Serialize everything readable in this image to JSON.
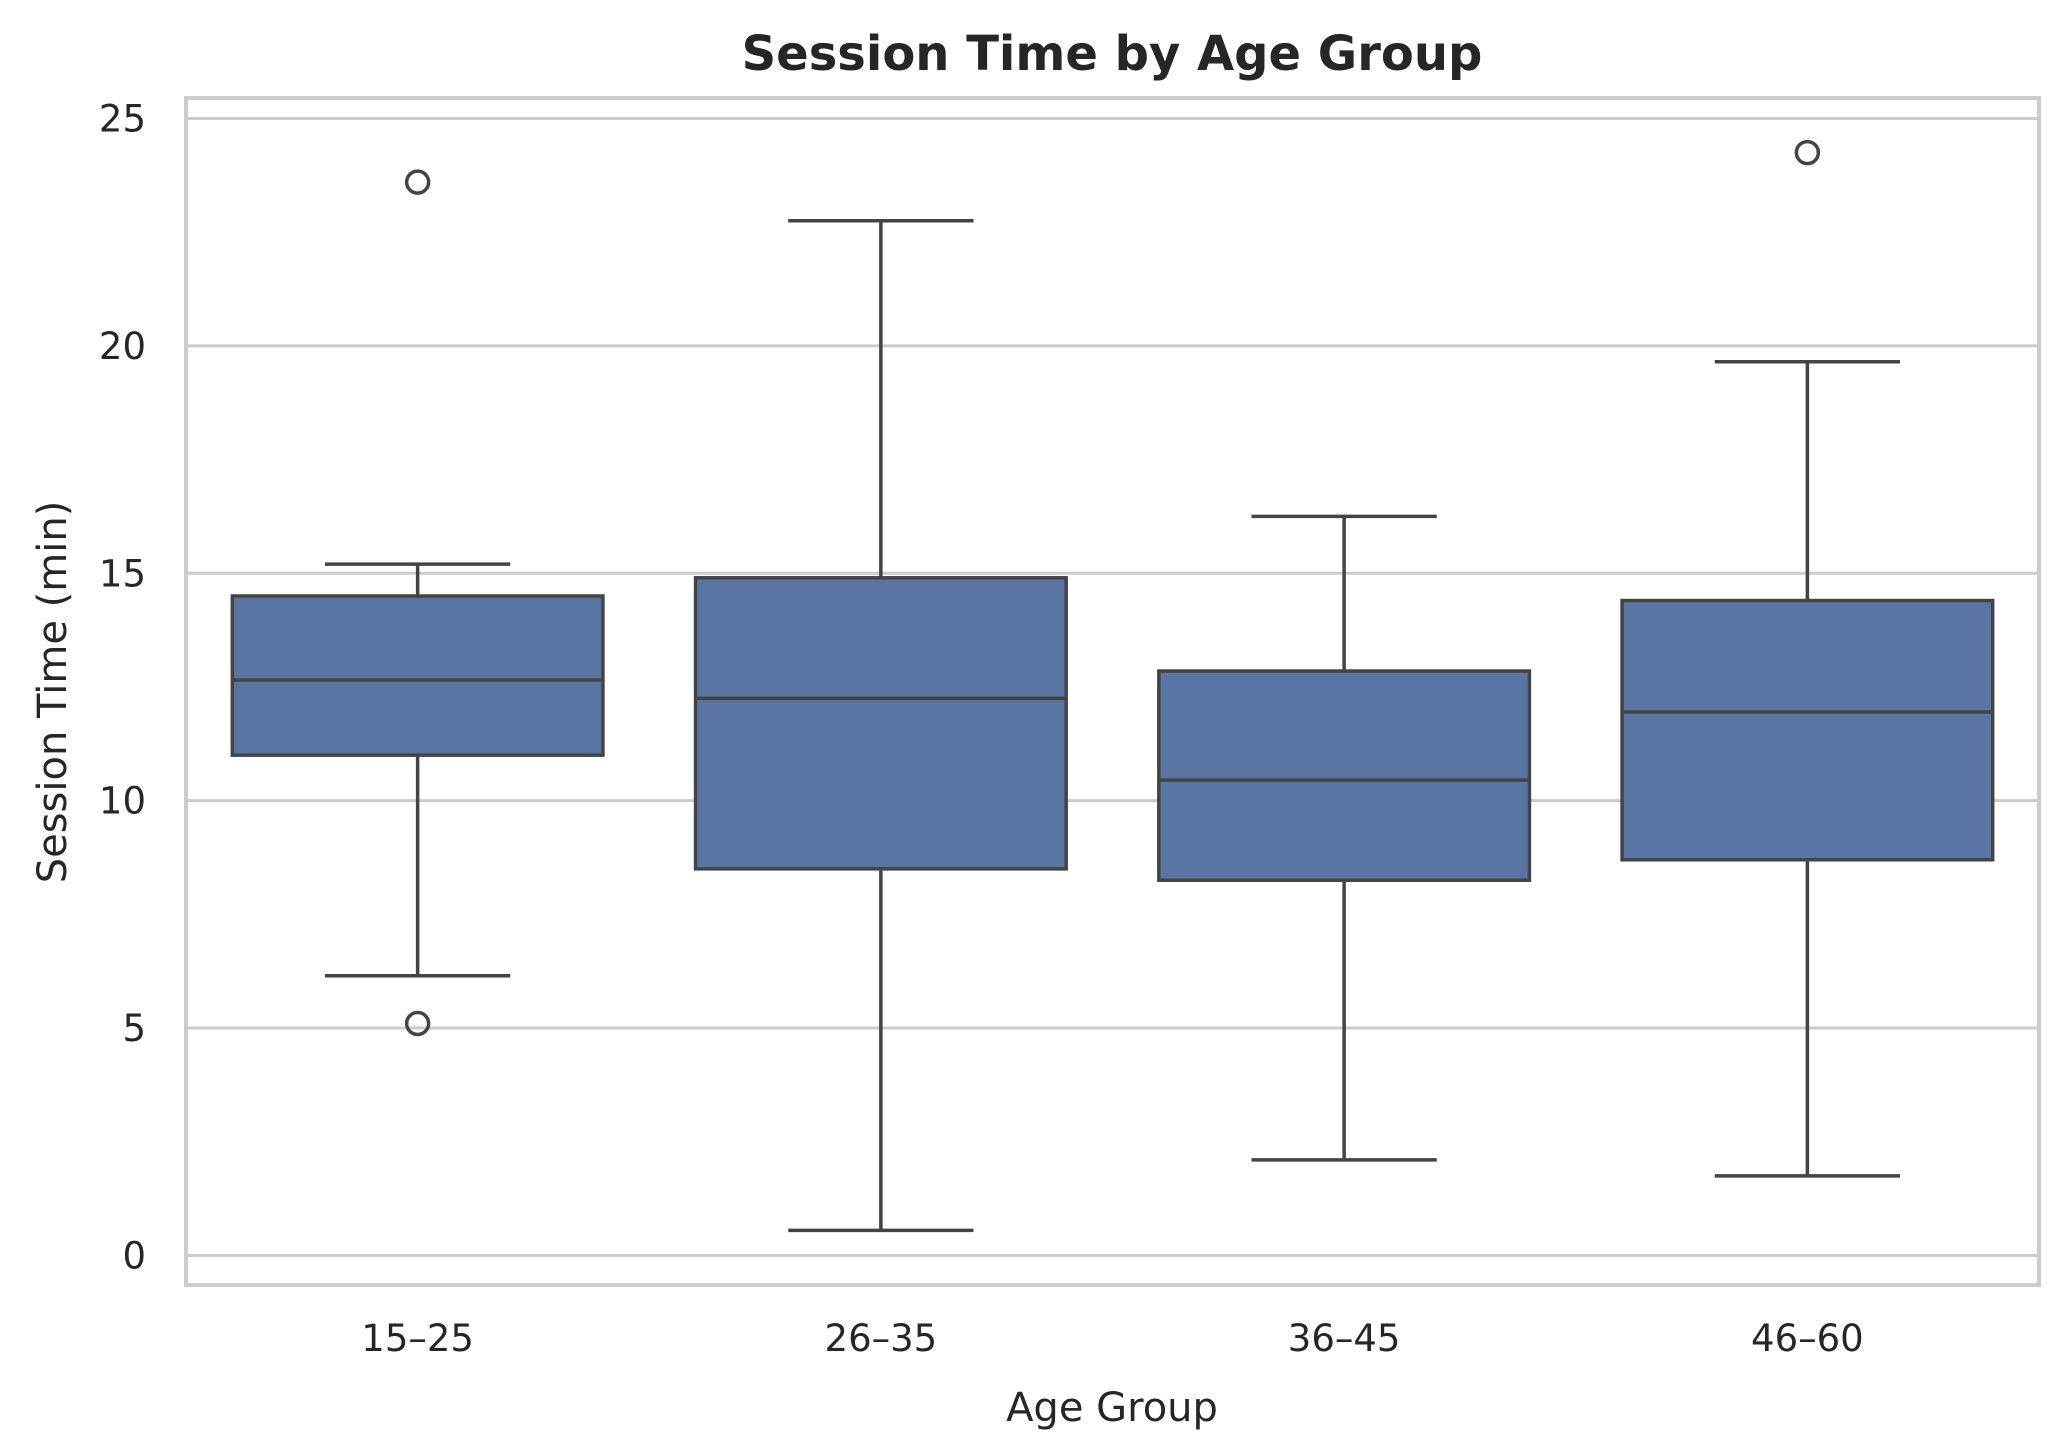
{
  "chart_data": {
    "type": "box",
    "title": "Session Time by Age Group",
    "xlabel": "Age Group",
    "ylabel": "Session Time (min)",
    "categories": [
      "15–25",
      "26–35",
      "36–45",
      "46–60"
    ],
    "ylim": [
      -0.65,
      25.45
    ],
    "yticks": [
      0,
      5,
      10,
      15,
      20,
      25
    ],
    "grid": true,
    "box_color": "#5975a4",
    "line_color": "#444444",
    "boxes": [
      {
        "category": "15–25",
        "whisker_low": 6.15,
        "q1": 11.0,
        "median": 12.65,
        "q3": 14.5,
        "whisker_high": 15.2,
        "outliers": [
          23.6,
          5.1
        ]
      },
      {
        "category": "26–35",
        "whisker_low": 0.55,
        "q1": 8.5,
        "median": 12.25,
        "q3": 14.9,
        "whisker_high": 22.75,
        "outliers": []
      },
      {
        "category": "36–45",
        "whisker_low": 2.1,
        "q1": 8.25,
        "median": 10.45,
        "q3": 12.85,
        "whisker_high": 16.25,
        "outliers": []
      },
      {
        "category": "46–60",
        "whisker_low": 1.75,
        "q1": 8.7,
        "median": 11.95,
        "q3": 14.4,
        "whisker_high": 19.65,
        "outliers": [
          24.25
        ]
      }
    ]
  }
}
